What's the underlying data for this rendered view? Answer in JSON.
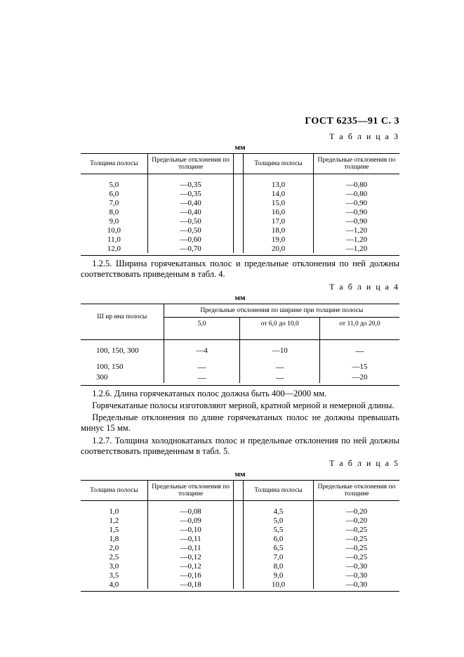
{
  "header": "ГОСТ 6235—91 С. 3",
  "unit": "мм",
  "table3": {
    "label": "Т а б л и ц а 3",
    "head": {
      "c1": "Толщина полосы",
      "c2": "Предельные отклонения по толщине",
      "c3": "Толщина полосы",
      "c4": "Предельные отклонения по толщине"
    },
    "rows": [
      [
        "5,0",
        "—0,35",
        "13,0",
        "—0,80"
      ],
      [
        "6,0",
        "—0,35",
        "14,0",
        "—0,80"
      ],
      [
        "7,0",
        "—0,40",
        "15,0",
        "—0,90"
      ],
      [
        "8,0",
        "—0,40",
        "16,0",
        "—0,90"
      ],
      [
        "9,0",
        "—0,50",
        "17,0",
        "—0,90"
      ],
      [
        "10,0",
        "—0,50",
        "18,0",
        "—1,20"
      ],
      [
        "11,0",
        "—0,60",
        "19,0",
        "—1,20"
      ],
      [
        "12,0",
        "—0,70",
        "20,0",
        "—1,20"
      ]
    ]
  },
  "para125": "1.2.5. Ширина горячекатаных полос и предельные отклонения по ней должны соответствовать приведеным в табл. 4.",
  "table4": {
    "label": "Т а б л и ц а 4",
    "head": {
      "row1_span": "Предельные отклонения по ширине при толщине полосы",
      "w": "Ш ир ина  полосы",
      "a": "5,0",
      "b": "от 6,0 до 10,0",
      "c": "от 11,0 до 20,0"
    },
    "rows": [
      [
        "100, 150, 300",
        "—4",
        "—10",
        "—"
      ],
      [
        "100, 150",
        "—",
        "—",
        "—15"
      ],
      [
        "300",
        "—",
        "—",
        "—20"
      ]
    ]
  },
  "para126a": "1.2.6. Длина горячекатаных полос должна быть 400—2000 мм.",
  "para126b": "Горячекатаные полосы изготовляют мерной, кратной мерной и немерной длины.",
  "para126c": "Предельные отклонения по длине горячекатаных полос не должны превышать минус 15 мм.",
  "para127": "1.2.7. Толщина холоднокатаных полос и предельные отклонения по ней должны соответствовать приведенным в табл. 5.",
  "table5": {
    "label": "Т а б л и ц а 5",
    "head": {
      "c1": "Толщина полосы",
      "c2": "Предельные отклонения по толщине",
      "c3": "Толщина полосы",
      "c4": "Предельные отклонения по толщине"
    },
    "rows": [
      [
        "1,0",
        "—0,08",
        "4,5",
        "—0,20"
      ],
      [
        "1,2",
        "—0,09",
        "5,0",
        "—0,20"
      ],
      [
        "1,5",
        "—0,10",
        "5,5",
        "—0,25"
      ],
      [
        "1,8",
        "—0,11",
        "6,0",
        "—0,25"
      ],
      [
        "2,0",
        "—0,11",
        "6,5",
        "—0,25"
      ],
      [
        "2,5",
        "—0,12",
        "7,0",
        "—0,25"
      ],
      [
        "3,0",
        "—0,12",
        "8,0",
        "—0,30"
      ],
      [
        "3,5",
        "—0,16",
        "9,0",
        "—0,30"
      ],
      [
        "4,0",
        "—0,18",
        "10,0",
        "—0,30"
      ]
    ]
  }
}
